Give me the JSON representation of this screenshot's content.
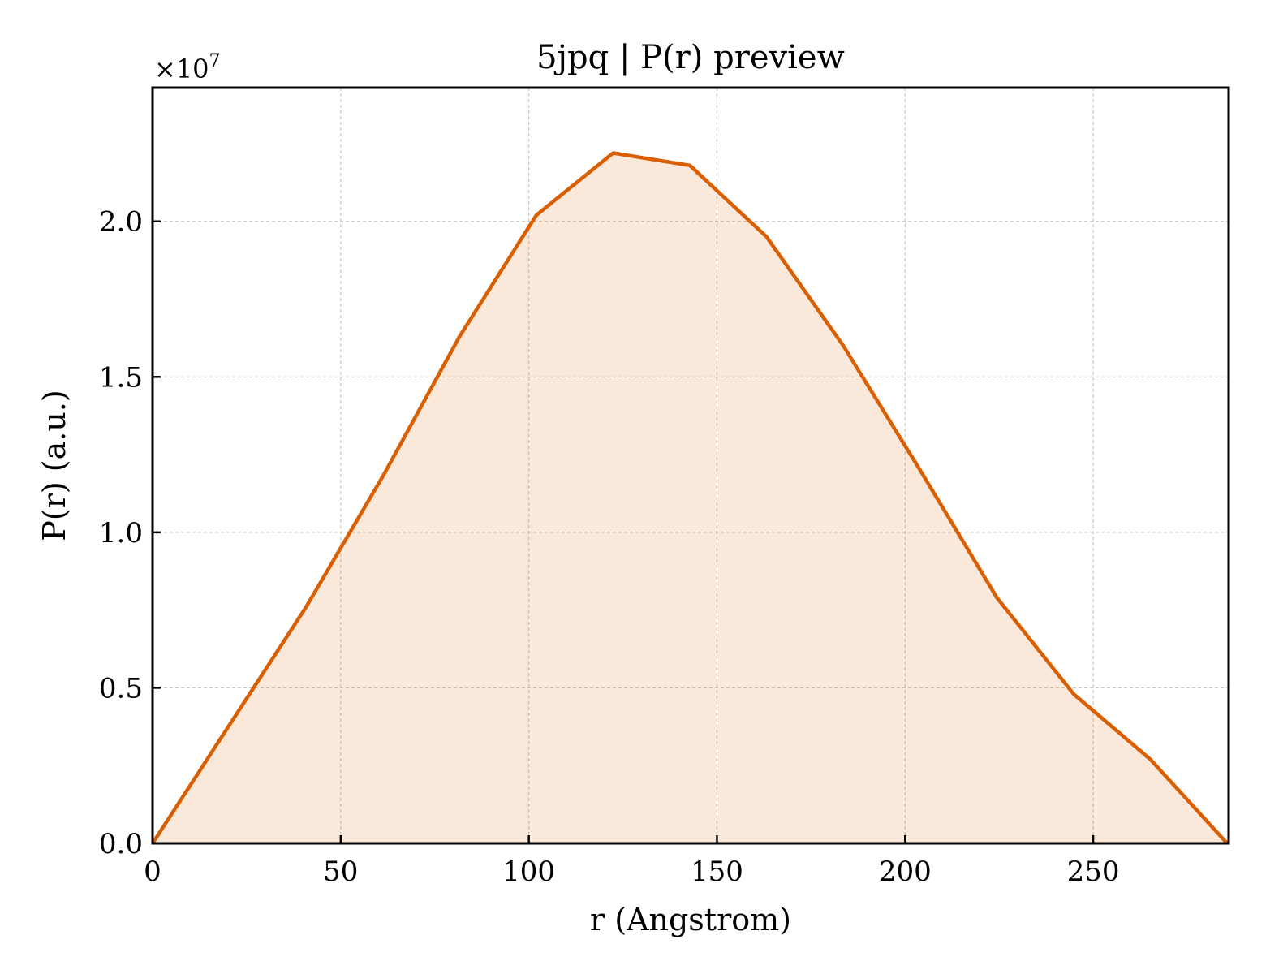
{
  "chart_data": {
    "type": "area",
    "title": "5jpq | P(r) preview",
    "xlabel": "r (Angstrom)",
    "ylabel": "P(r) (a.u.)",
    "y_scale_label": "×10",
    "y_scale_exponent": "7",
    "y_multiplier": 10000000,
    "xlim": [
      0,
      286
    ],
    "ylim": [
      0,
      2.43
    ],
    "x_ticks": [
      0,
      50,
      100,
      150,
      200,
      250
    ],
    "x_tick_labels": [
      "0",
      "50",
      "100",
      "150",
      "200",
      "250"
    ],
    "y_ticks": [
      0,
      0.5,
      1.0,
      1.5,
      2.0
    ],
    "y_tick_labels": [
      "0.0",
      "0.5",
      "1.0",
      "1.5",
      "2.0"
    ],
    "grid": true,
    "series": [
      {
        "x": [
          0,
          20.4,
          40.8,
          61.2,
          81.6,
          102.0,
          122.4,
          142.8,
          163.2,
          183.6,
          204.0,
          224.4,
          244.8,
          265.2,
          285.6
        ],
        "values": [
          0.0,
          0.38,
          0.76,
          1.18,
          1.63,
          2.02,
          2.22,
          2.18,
          1.95,
          1.6,
          1.2,
          0.79,
          0.48,
          0.27,
          0.0
        ],
        "color": "#d95f02",
        "fill_color": "#d95f02",
        "fill_opacity": 0.14
      }
    ]
  }
}
